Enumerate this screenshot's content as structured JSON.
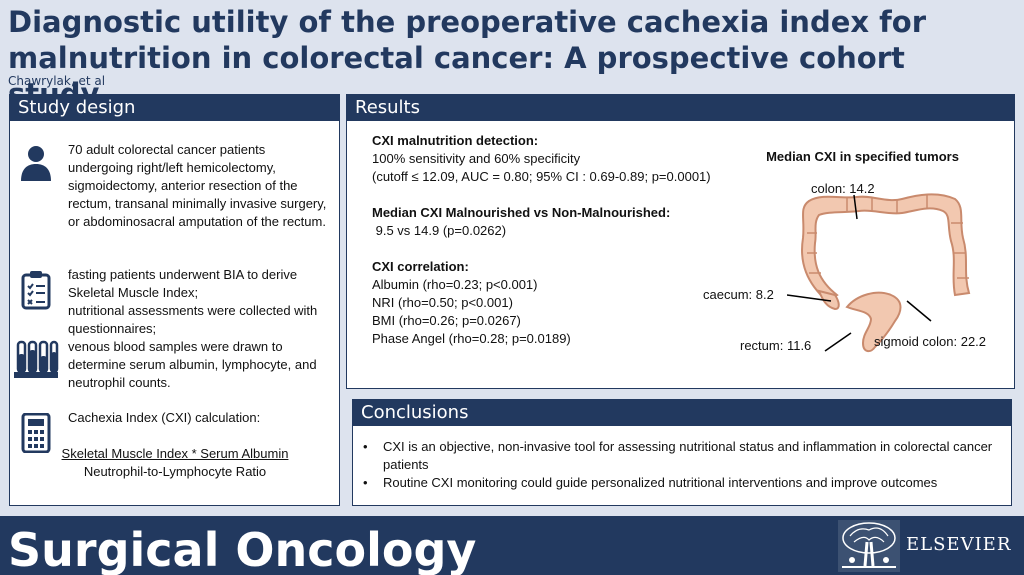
{
  "title": "Diagnostic utility of the preoperative cachexia index for malnutrition in colorectal cancer: A prospective cohort study.",
  "authors": "Chawrylak, et al",
  "study_design": {
    "header": "Study design",
    "patients": "70 adult colorectal cancer patients undergoing right/left hemicolectomy, sigmoidectomy, anterior resection of the rectum, transanal minimally invasive surgery, or abdominosacral amputation of the rectum.",
    "methods_1": "fasting patients underwent BIA to derive Skeletal Muscle Index;",
    "methods_2": "nutritional assessments were collected with questionnaires;",
    "methods_3": "venous blood samples were drawn to determine serum albumin, lymphocyte, and neutrophil counts.",
    "cxi_label": "Cachexia Index (CXI) calculation:",
    "formula_numerator": "Skeletal Muscle Index * Serum Albumin",
    "formula_denominator": "Neutrophil-to-Lymphocyte Ratio"
  },
  "results": {
    "header": "Results",
    "detection_heading": "CXI malnutrition detection:",
    "detection_line1": "100% sensitivity and 60% specificity",
    "detection_line2": "(cutoff ≤ 12.09, AUC = 0.80; 95% CI : 0.69-0.89; p=0.0001)",
    "median_heading": "Median CXI Malnourished vs Non-Malnourished:",
    "median_line": " 9.5 vs 14.9 (p=0.0262)",
    "correlation_heading": "CXI correlation:",
    "correlations": [
      "Albumin (rho=0.23; p<0.001)",
      "NRI (rho=0.50; p<0.001)",
      "BMI (rho=0.26; p=0.0267)",
      "Phase Angel (rho=0.28; p=0.0189)"
    ],
    "colon_title": "Median CXI in specified tumors",
    "labels": {
      "colon": "colon: 14.2",
      "caecum": "caecum: 8.2",
      "rectum": "rectum: 11.6",
      "sigmoid": "sigmoid colon: 22.2"
    }
  },
  "conclusions": {
    "header": "Conclusions",
    "items": [
      "CXI is an objective, non-invasive tool for assessing nutritional status and inflammation in colorectal cancer patients",
      "Routine CXI monitoring could guide personalized nutritional interventions and improve outcomes"
    ]
  },
  "footer": {
    "journal": "Surgical Oncology",
    "publisher": "ELSEVIER"
  },
  "colors": {
    "primary": "#22395f",
    "background": "#dde3ee",
    "colon_fill": "#f2c8b0",
    "colon_stroke": "#c98a6d"
  }
}
